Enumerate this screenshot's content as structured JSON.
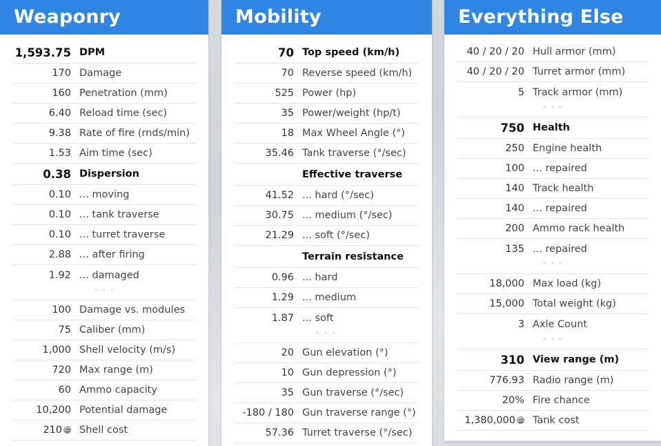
{
  "weaponry": {
    "title": "Weaponry",
    "rows": [
      {
        "value": "1,593.75",
        "label": "DPM",
        "style": "big"
      },
      {
        "value": "170",
        "label": "Damage"
      },
      {
        "value": "160",
        "label": "Penetration (mm)"
      },
      {
        "value": "6.40",
        "label": "Reload time (sec)"
      },
      {
        "value": "9.38",
        "label": "Rate of fire (rnds/min)"
      },
      {
        "value": "1.53",
        "label": "Aim time (sec)"
      },
      {
        "value": "0.38",
        "label": "Dispersion",
        "style": "big"
      },
      {
        "value": "0.10",
        "label": "... moving"
      },
      {
        "value": "0.10",
        "label": "... tank traverse"
      },
      {
        "value": "0.10",
        "label": "... turret traverse"
      },
      {
        "value": "2.88",
        "label": "... after firing"
      },
      {
        "value": "1.92",
        "label": "... damaged",
        "noline": true
      },
      {
        "sep": "· · ·"
      },
      {
        "value": "100",
        "label": "Damage vs. modules"
      },
      {
        "value": "75",
        "label": "Caliber (mm)"
      },
      {
        "value": "1,000",
        "label": "Shell velocity (m/s)"
      },
      {
        "value": "720",
        "label": "Max range (m)"
      },
      {
        "value": "60",
        "label": "Ammo capacity"
      },
      {
        "value": "10,200",
        "label": "Potential damage"
      },
      {
        "value": "210",
        "label": "Shell cost",
        "coin": true
      }
    ]
  },
  "mobility": {
    "title": "Mobility",
    "rows": [
      {
        "value": "70",
        "label": "Top speed (km/h)",
        "style": "big"
      },
      {
        "value": "70",
        "label": "Reverse speed (km/h)"
      },
      {
        "value": "525",
        "label": "Power (hp)"
      },
      {
        "value": "35",
        "label": "Power/weight (hp/t)"
      },
      {
        "value": "18",
        "label": "Max Wheel Angle (°)"
      },
      {
        "value": "35.46",
        "label": "Tank traverse (°/sec)"
      },
      {
        "value": "",
        "label": "Effective traverse",
        "style": "sub"
      },
      {
        "value": "41.52",
        "label": "... hard (°/sec)"
      },
      {
        "value": "30.75",
        "label": "... medium (°/sec)"
      },
      {
        "value": "21.29",
        "label": "... soft (°/sec)"
      },
      {
        "value": "",
        "label": "Terrain resistance",
        "style": "sub"
      },
      {
        "value": "0.96",
        "label": "... hard"
      },
      {
        "value": "1.29",
        "label": "... medium"
      },
      {
        "value": "1.87",
        "label": "... soft",
        "noline": true
      },
      {
        "sep": "· · ·"
      },
      {
        "value": "20",
        "label": "Gun elevation (°)"
      },
      {
        "value": "10",
        "label": "Gun depression (°)"
      },
      {
        "value": "35",
        "label": "Gun traverse (°/sec)"
      },
      {
        "value": "-180 / 180",
        "label": "Gun traverse range (°)"
      },
      {
        "value": "57.36",
        "label": "Turret traverse (°/sec)"
      }
    ]
  },
  "everything_else": {
    "title": "Everything Else",
    "rows": [
      {
        "value": "40 / 20 / 20",
        "label": "Hull armor (mm)"
      },
      {
        "value": "40 / 20 / 20",
        "label": "Turret armor (mm)"
      },
      {
        "value": "5",
        "label": "Track armor (mm)",
        "noline": true
      },
      {
        "sep": "· · ·"
      },
      {
        "value": "750",
        "label": "Health",
        "style": "big"
      },
      {
        "value": "250",
        "label": "Engine health"
      },
      {
        "value": "100",
        "label": "... repaired"
      },
      {
        "value": "140",
        "label": "Track health"
      },
      {
        "value": "140",
        "label": "... repaired"
      },
      {
        "value": "200",
        "label": "Ammo rack health"
      },
      {
        "value": "135",
        "label": "... repaired",
        "noline": true
      },
      {
        "sep": "· · ·"
      },
      {
        "value": "18,000",
        "label": "Max load (kg)"
      },
      {
        "value": "15,000",
        "label": "Total weight (kg)"
      },
      {
        "value": "3",
        "label": "Axle Count",
        "noline": true
      },
      {
        "sep": "· · ·"
      },
      {
        "value": "310",
        "label": "View range (m)",
        "style": "big"
      },
      {
        "value": "776.93",
        "label": "Radio range (m)"
      },
      {
        "value": "20%",
        "label": "Fire chance"
      },
      {
        "value": "1,380,000",
        "label": "Tank cost",
        "coin": true
      }
    ]
  },
  "colors": {
    "header": "#2f86e2",
    "header_text": "#ffffff"
  },
  "icons": {
    "coin": "silver-coin-icon"
  }
}
